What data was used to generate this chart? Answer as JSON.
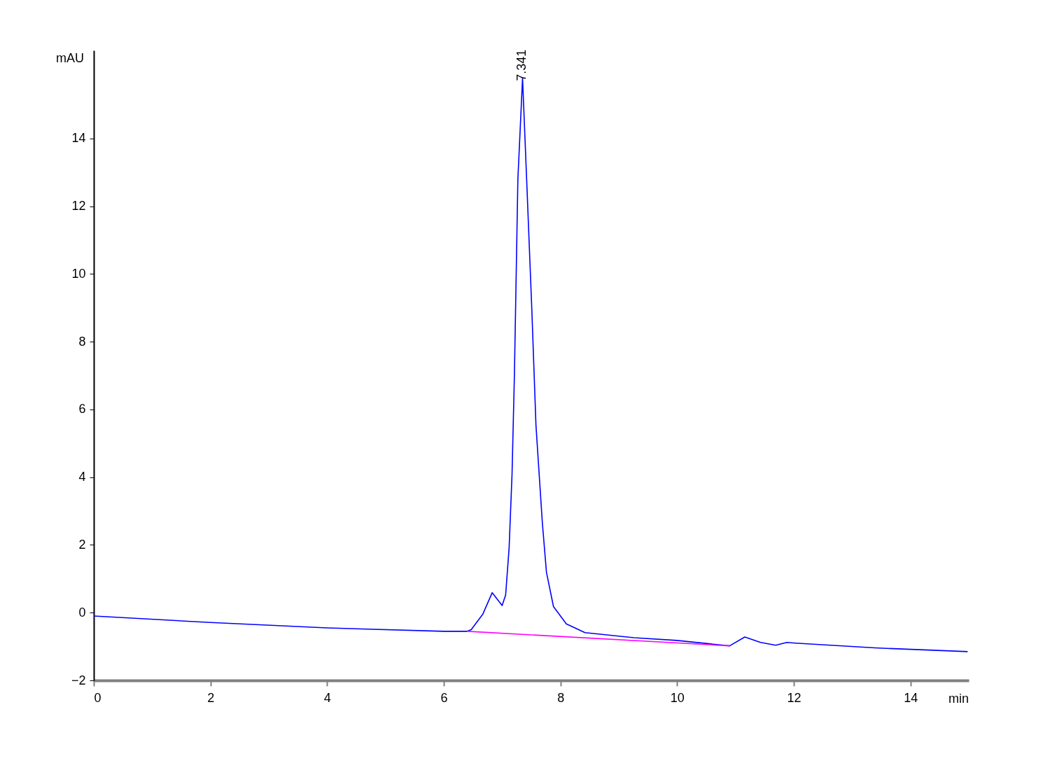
{
  "chart_data": {
    "type": "line",
    "xlabel": "min",
    "ylabel": "mAU",
    "xlim": [
      0,
      15
    ],
    "ylim": [
      -2,
      16.6
    ],
    "xticks": [
      0,
      2,
      4,
      6,
      8,
      10,
      12,
      14
    ],
    "yticks": [
      -2,
      0,
      2,
      4,
      6,
      8,
      10,
      12,
      14
    ],
    "grid": false,
    "marker": "none",
    "line_style": "solid",
    "series": [
      {
        "color": "#0000ff",
        "x": [
          0,
          2,
          4,
          6,
          6.4,
          6.47,
          6.67,
          6.83,
          7.0,
          7.06,
          7.12,
          7.17,
          7.21,
          7.23,
          7.27,
          7.35,
          7.42,
          7.51,
          7.58,
          7.69,
          7.76,
          7.88,
          8.1,
          8.42,
          9.26,
          9.99,
          10.9,
          11.16,
          11.43,
          11.69,
          11.88,
          12.03,
          13.39,
          14.98
        ],
        "values": [
          -0.1,
          -0.29,
          -0.45,
          -0.55,
          -0.55,
          -0.5,
          -0.04,
          0.59,
          0.21,
          0.52,
          1.92,
          4.09,
          6.98,
          8.9,
          12.8,
          15.78,
          12.8,
          8.9,
          5.53,
          2.64,
          1.19,
          0.18,
          -0.33,
          -0.59,
          -0.74,
          -0.82,
          -0.98,
          -0.72,
          -0.88,
          -0.96,
          -0.88,
          -0.9,
          -1.04,
          -1.15
        ]
      },
      {
        "color": "#ff00ff",
        "x": [
          6.4,
          10.9
        ],
        "values": [
          -0.55,
          -0.98
        ]
      }
    ],
    "annotations": [
      {
        "text": "7.341",
        "x": 7.341,
        "y": 15.78
      }
    ]
  }
}
